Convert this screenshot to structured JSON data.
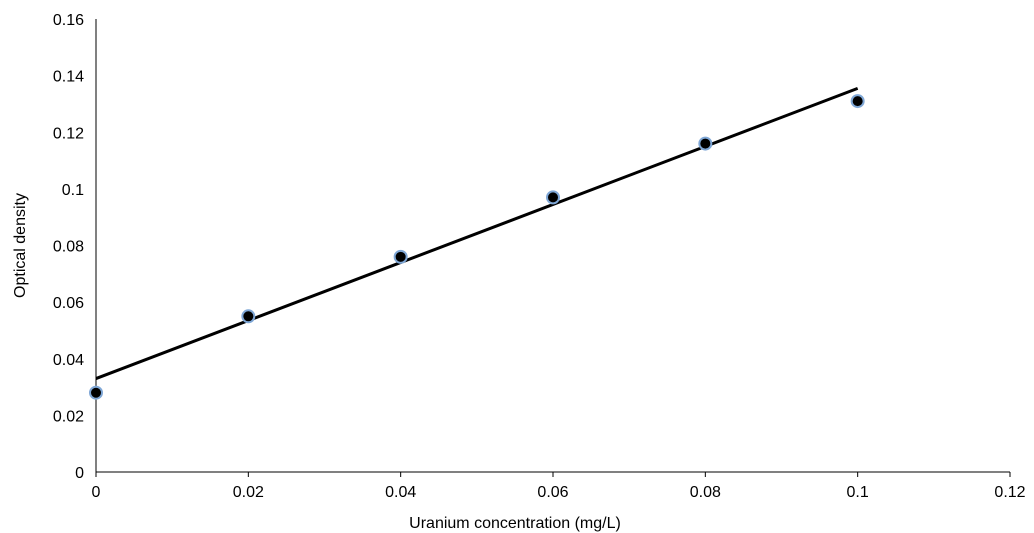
{
  "chart_data": {
    "type": "scatter",
    "title": "",
    "xlabel": "Uranium concentration (mg/L)",
    "ylabel": "Optical density",
    "xlim": [
      0,
      0.12
    ],
    "ylim": [
      0,
      0.16
    ],
    "x_ticks": [
      "0",
      "0.02",
      "0.04",
      "0.06",
      "0.08",
      "0.1",
      "0.12"
    ],
    "y_ticks": [
      "0",
      "0.02",
      "0.04",
      "0.06",
      "0.08",
      "0.1",
      "0.12",
      "0.14",
      "0.16"
    ],
    "series": [
      {
        "x": [
          0,
          0.02,
          0.04,
          0.06,
          0.08,
          0.1
        ],
        "y": [
          0.028,
          0.055,
          0.076,
          0.097,
          0.116,
          0.131
        ],
        "marker_fill": "#000000",
        "marker_edge": "#7fa7d6"
      }
    ],
    "trendline": {
      "x": [
        0,
        0.1
      ],
      "y": [
        0.033,
        0.1355
      ],
      "color": "#000000"
    },
    "grid": false,
    "legend": "none"
  }
}
